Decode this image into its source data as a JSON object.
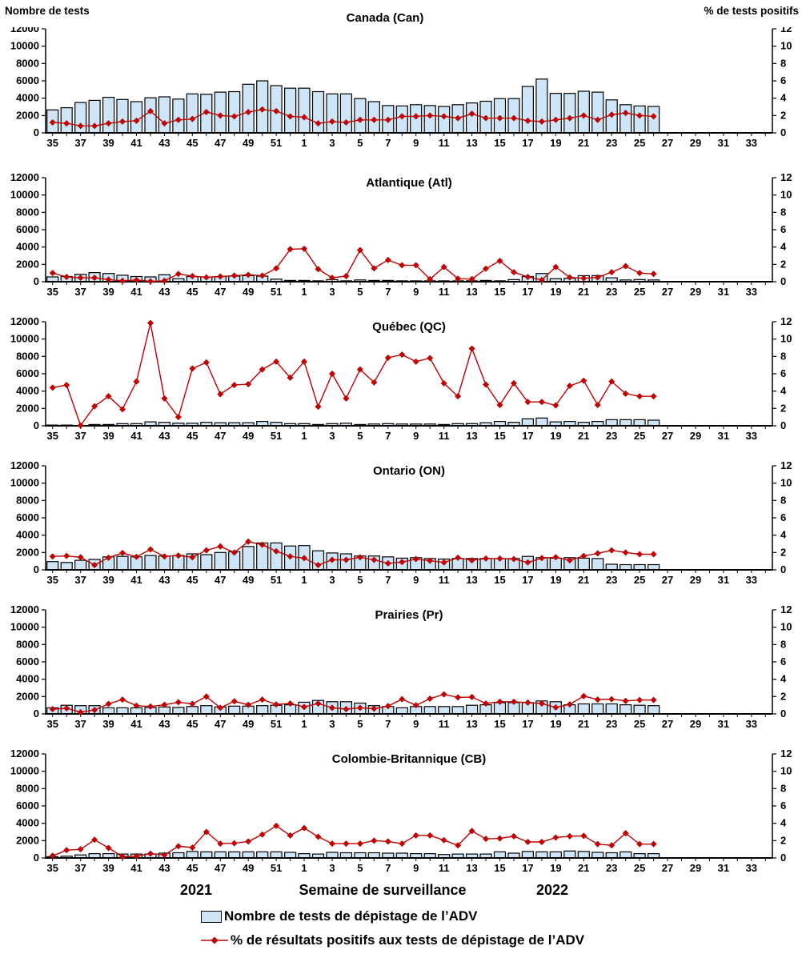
{
  "header": {
    "left_axis_title": "Nombre de tests",
    "right_axis_title": "% de tests positifs"
  },
  "footer": {
    "year_left": "2021",
    "x_axis_label": "Semaine de surveillance",
    "year_right": "2022"
  },
  "legend": [
    {
      "icon": "bar-swatch",
      "label": "Nombre de tests de dépistage de l’ADV"
    },
    {
      "icon": "line-diamond-marker",
      "label": "% de résultats positifs aux tests de dépistage de l’ADV"
    }
  ],
  "colors": {
    "bar_fill": "#CDE5F7",
    "bar_stroke": "#000000",
    "line": "#C00000",
    "axis": "#000000"
  },
  "axes": {
    "y_left": {
      "min": 0,
      "max": 12000,
      "step": 2000
    },
    "y_right": {
      "min": 0,
      "max": 12,
      "step": 2
    },
    "x_slot_weeks": [
      35,
      36,
      37,
      38,
      39,
      40,
      41,
      42,
      43,
      44,
      45,
      46,
      47,
      48,
      49,
      50,
      51,
      52,
      1,
      2,
      3,
      4,
      5,
      6,
      7,
      8,
      9,
      10,
      11,
      12,
      13,
      14,
      15,
      16,
      17,
      18,
      19,
      20,
      21,
      22,
      23,
      24,
      25,
      26,
      27,
      28,
      29,
      30,
      31,
      32,
      33,
      34
    ],
    "x_tick_labels": [
      35,
      37,
      39,
      41,
      43,
      45,
      47,
      49,
      51,
      1,
      3,
      5,
      7,
      9,
      11,
      13,
      15,
      17,
      19,
      21,
      23,
      25,
      27,
      29,
      31,
      33
    ]
  },
  "chart_data": [
    {
      "title": "Canada (Can)",
      "type": "bar+line",
      "weeks": [
        35,
        36,
        37,
        38,
        39,
        40,
        41,
        42,
        43,
        44,
        45,
        46,
        47,
        48,
        49,
        50,
        51,
        52,
        1,
        2,
        3,
        4,
        5,
        6,
        7,
        8,
        9,
        10,
        11,
        12,
        13,
        14,
        15,
        16,
        17,
        18,
        19,
        20,
        21,
        22,
        23,
        24,
        25,
        26
      ],
      "tests": [
        2650,
        2900,
        3500,
        3750,
        4100,
        3850,
        3600,
        4050,
        4150,
        3900,
        4500,
        4450,
        4700,
        4750,
        5600,
        6000,
        5450,
        5150,
        5150,
        4750,
        4500,
        4500,
        3950,
        3600,
        3150,
        3100,
        3250,
        3150,
        3050,
        3250,
        3450,
        3650,
        3950,
        3950,
        5350,
        6200,
        4550,
        4550,
        4800,
        4700,
        3800,
        3250,
        3100,
        3050
      ],
      "pct_positive": [
        1.2,
        1.1,
        0.8,
        0.8,
        1.1,
        1.3,
        1.4,
        2.5,
        1.1,
        1.5,
        1.6,
        2.4,
        2.0,
        1.9,
        2.4,
        2.7,
        2.5,
        1.9,
        1.8,
        1.1,
        1.3,
        1.2,
        1.5,
        1.5,
        1.5,
        1.9,
        1.9,
        2.0,
        1.9,
        1.7,
        2.2,
        1.7,
        1.7,
        1.7,
        1.4,
        1.3,
        1.5,
        1.7,
        2.0,
        1.5,
        2.1,
        2.3,
        2.0,
        1.9
      ]
    },
    {
      "title": "Atlantique (Atl)",
      "type": "bar+line",
      "weeks": [
        35,
        36,
        37,
        38,
        39,
        40,
        41,
        42,
        43,
        44,
        45,
        46,
        47,
        48,
        49,
        50,
        51,
        52,
        1,
        2,
        3,
        4,
        5,
        6,
        7,
        8,
        9,
        10,
        11,
        12,
        13,
        14,
        15,
        16,
        17,
        18,
        19,
        20,
        21,
        22,
        23,
        24,
        25,
        26
      ],
      "tests": [
        550,
        600,
        850,
        1050,
        950,
        750,
        600,
        550,
        800,
        350,
        600,
        550,
        600,
        650,
        700,
        650,
        300,
        150,
        150,
        100,
        250,
        100,
        200,
        150,
        150,
        100,
        100,
        100,
        100,
        100,
        100,
        150,
        100,
        250,
        600,
        950,
        350,
        400,
        700,
        700,
        450,
        200,
        250,
        200
      ],
      "pct_positive": [
        1.0,
        0.55,
        0.45,
        0.45,
        0.25,
        0.1,
        0.2,
        0.05,
        0.1,
        0.9,
        0.65,
        0.5,
        0.6,
        0.7,
        0.8,
        0.7,
        1.55,
        3.75,
        3.8,
        1.45,
        0.45,
        0.65,
        3.65,
        1.55,
        2.5,
        1.9,
        1.9,
        0.3,
        1.7,
        0.35,
        0.3,
        1.5,
        2.4,
        1.1,
        0.55,
        0.2,
        1.7,
        0.5,
        0.4,
        0.5,
        1.1,
        1.8,
        1.0,
        0.9
      ]
    },
    {
      "title": "Québec (QC)",
      "type": "bar+line",
      "weeks": [
        35,
        36,
        37,
        38,
        39,
        40,
        41,
        42,
        43,
        44,
        45,
        46,
        47,
        48,
        49,
        50,
        51,
        52,
        1,
        2,
        3,
        4,
        5,
        6,
        7,
        8,
        9,
        10,
        11,
        12,
        13,
        14,
        15,
        16,
        17,
        18,
        19,
        20,
        21,
        22,
        23,
        24,
        25,
        26
      ],
      "tests": [
        80,
        80,
        30,
        150,
        150,
        250,
        250,
        450,
        400,
        300,
        300,
        400,
        350,
        350,
        350,
        500,
        400,
        250,
        250,
        150,
        250,
        300,
        150,
        200,
        250,
        200,
        200,
        200,
        150,
        250,
        250,
        350,
        500,
        400,
        800,
        900,
        450,
        500,
        400,
        500,
        700,
        700,
        700,
        650
      ],
      "pct_positive": [
        4.4,
        4.7,
        0.05,
        2.25,
        3.4,
        1.9,
        5.1,
        11.85,
        3.15,
        1.0,
        6.6,
        7.3,
        3.65,
        4.7,
        4.8,
        6.5,
        7.4,
        5.55,
        7.4,
        2.2,
        6.0,
        3.15,
        6.5,
        5.0,
        7.85,
        8.2,
        7.4,
        7.8,
        4.9,
        3.4,
        8.9,
        4.75,
        2.4,
        4.9,
        2.75,
        2.75,
        2.35,
        4.6,
        5.2,
        2.4,
        5.1,
        3.7,
        3.4,
        3.4
      ]
    },
    {
      "title": "Ontario (ON)",
      "type": "bar+line",
      "weeks": [
        35,
        36,
        37,
        38,
        39,
        40,
        41,
        42,
        43,
        44,
        45,
        46,
        47,
        48,
        49,
        50,
        51,
        52,
        1,
        2,
        3,
        4,
        5,
        6,
        7,
        8,
        9,
        10,
        11,
        12,
        13,
        14,
        15,
        16,
        17,
        18,
        19,
        20,
        21,
        22,
        23,
        24,
        25,
        26
      ],
      "tests": [
        950,
        850,
        1100,
        1200,
        1500,
        1550,
        1500,
        1650,
        1600,
        1650,
        1850,
        1750,
        2000,
        2100,
        2700,
        3100,
        3100,
        2750,
        2800,
        2200,
        1950,
        1850,
        1600,
        1600,
        1500,
        1350,
        1400,
        1300,
        1250,
        1300,
        1300,
        1300,
        1300,
        1300,
        1550,
        1400,
        1350,
        1400,
        1350,
        1300,
        650,
        600,
        600,
        600
      ],
      "pct_positive": [
        1.55,
        1.6,
        1.45,
        0.55,
        1.4,
        1.95,
        1.5,
        2.35,
        1.55,
        1.65,
        1.45,
        2.25,
        2.7,
        2.0,
        3.25,
        2.9,
        2.15,
        1.55,
        1.35,
        0.55,
        1.15,
        1.15,
        1.45,
        1.15,
        0.75,
        0.9,
        1.25,
        1.05,
        0.85,
        1.4,
        1.1,
        1.3,
        1.3,
        1.25,
        0.85,
        1.35,
        1.45,
        1.1,
        1.6,
        1.9,
        2.25,
        2.0,
        1.8,
        1.8
      ]
    },
    {
      "title": "Prairies (Pr)",
      "type": "bar+line",
      "weeks": [
        35,
        36,
        37,
        38,
        39,
        40,
        41,
        42,
        43,
        44,
        45,
        46,
        47,
        48,
        49,
        50,
        51,
        52,
        1,
        2,
        3,
        4,
        5,
        6,
        7,
        8,
        9,
        10,
        11,
        12,
        13,
        14,
        15,
        16,
        17,
        18,
        19,
        20,
        21,
        22,
        23,
        24,
        25,
        26
      ],
      "tests": [
        700,
        1000,
        950,
        950,
        700,
        700,
        700,
        750,
        800,
        750,
        850,
        950,
        800,
        900,
        900,
        950,
        1000,
        1050,
        1350,
        1550,
        1400,
        1400,
        1250,
        950,
        850,
        700,
        850,
        850,
        850,
        850,
        1000,
        1050,
        1300,
        1300,
        1300,
        1500,
        1400,
        1050,
        1150,
        1150,
        1150,
        1050,
        1000,
        950
      ],
      "pct_positive": [
        0.55,
        0.65,
        0.2,
        0.45,
        1.15,
        1.65,
        0.95,
        0.85,
        1.05,
        1.35,
        1.15,
        2.0,
        0.7,
        1.45,
        1.05,
        1.65,
        1.1,
        1.2,
        0.8,
        1.2,
        0.7,
        0.55,
        0.7,
        0.6,
        0.9,
        1.7,
        1.0,
        1.75,
        2.25,
        1.9,
        1.95,
        1.2,
        1.4,
        1.4,
        1.3,
        1.2,
        0.75,
        1.1,
        2.05,
        1.65,
        1.7,
        1.5,
        1.6,
        1.6
      ]
    },
    {
      "title": "Colombie-Britannique (CB)",
      "type": "bar+line",
      "weeks": [
        35,
        36,
        37,
        38,
        39,
        40,
        41,
        42,
        43,
        44,
        45,
        46,
        47,
        48,
        49,
        50,
        51,
        52,
        1,
        2,
        3,
        4,
        5,
        6,
        7,
        8,
        9,
        10,
        11,
        12,
        13,
        14,
        15,
        16,
        17,
        18,
        19,
        20,
        21,
        22,
        23,
        24,
        25,
        26
      ],
      "tests": [
        150,
        200,
        350,
        500,
        500,
        450,
        450,
        450,
        550,
        600,
        750,
        700,
        700,
        700,
        700,
        700,
        700,
        650,
        500,
        450,
        650,
        600,
        600,
        600,
        550,
        550,
        500,
        500,
        400,
        450,
        450,
        450,
        700,
        550,
        750,
        700,
        700,
        800,
        750,
        650,
        600,
        700,
        500,
        500
      ],
      "pct_positive": [
        0.25,
        0.9,
        1.0,
        2.1,
        1.15,
        0.15,
        0.2,
        0.5,
        0.35,
        1.35,
        1.2,
        3.0,
        1.65,
        1.7,
        1.9,
        2.7,
        3.7,
        2.6,
        3.45,
        2.45,
        1.65,
        1.65,
        1.65,
        2.0,
        1.9,
        1.65,
        2.6,
        2.6,
        2.05,
        1.45,
        3.1,
        2.2,
        2.25,
        2.5,
        1.85,
        1.85,
        2.35,
        2.5,
        2.55,
        1.6,
        1.45,
        2.85,
        1.6,
        1.6
      ]
    }
  ]
}
